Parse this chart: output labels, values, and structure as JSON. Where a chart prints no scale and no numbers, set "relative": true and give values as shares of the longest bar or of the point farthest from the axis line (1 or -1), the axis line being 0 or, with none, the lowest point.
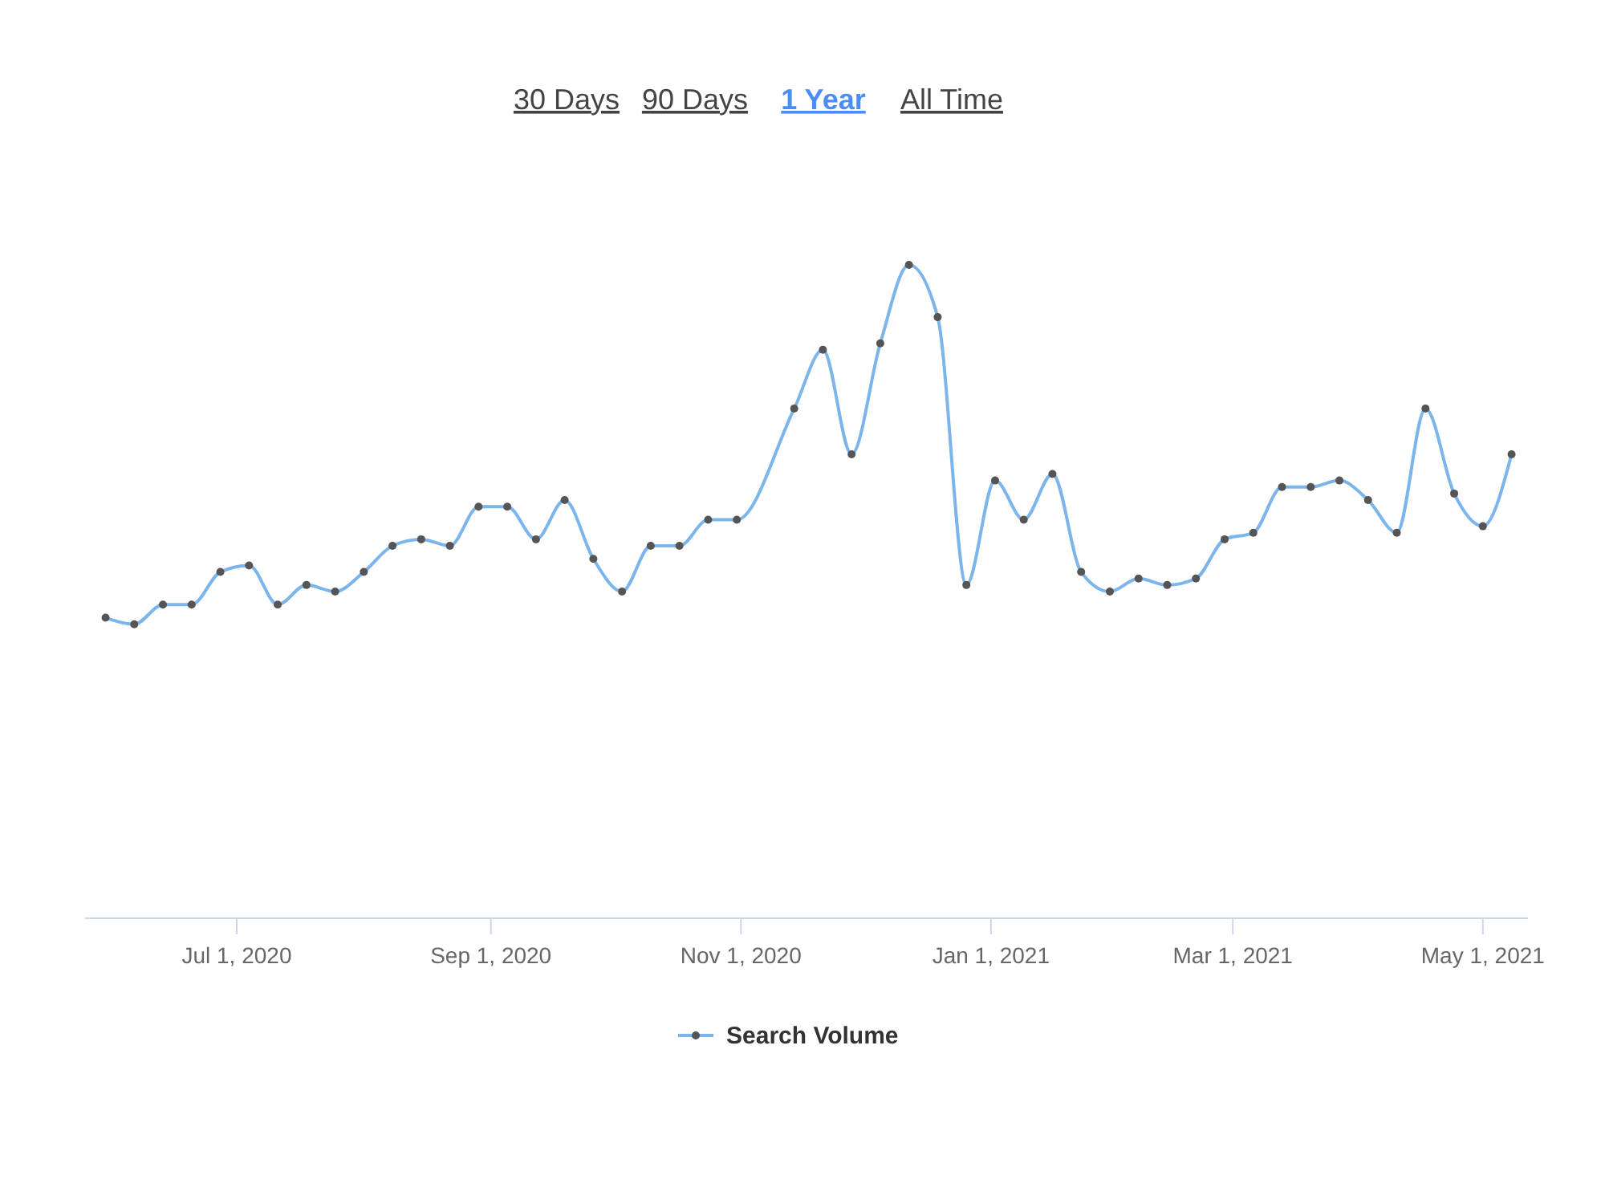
{
  "chart_data": {
    "type": "line",
    "relative": true,
    "annotations": [
      "30 Days",
      "90 Days",
      "1 Year",
      "All Time"
    ],
    "x": [
      "2020-05-30",
      "2020-06-06",
      "2020-06-13",
      "2020-06-20",
      "2020-06-27",
      "2020-07-04",
      "2020-07-11",
      "2020-07-18",
      "2020-07-25",
      "2020-08-01",
      "2020-08-08",
      "2020-08-15",
      "2020-08-22",
      "2020-08-29",
      "2020-09-05",
      "2020-09-12",
      "2020-09-19",
      "2020-09-26",
      "2020-10-03",
      "2020-10-10",
      "2020-10-17",
      "2020-10-24",
      "2020-10-31",
      "2020-11-14",
      "2020-11-21",
      "2020-11-28",
      "2020-12-05",
      "2020-12-12",
      "2020-12-19",
      "2020-12-26",
      "2021-01-02",
      "2021-01-09",
      "2021-01-16",
      "2021-01-23",
      "2021-01-30",
      "2021-02-06",
      "2021-02-13",
      "2021-02-20",
      "2021-02-27",
      "2021-03-06",
      "2021-03-13",
      "2021-03-20",
      "2021-03-27",
      "2021-04-03",
      "2021-04-10",
      "2021-04-17",
      "2021-04-24",
      "2021-05-01",
      "2021-05-08"
    ],
    "xlim": [
      "2020-05-25",
      "2021-05-12"
    ],
    "xticks": [
      {
        "value": "2020-07-01",
        "label": "Jul 1, 2020"
      },
      {
        "value": "2020-09-01",
        "label": "Sep 1, 2020"
      },
      {
        "value": "2020-11-01",
        "label": "Nov 1, 2020"
      },
      {
        "value": "2021-01-01",
        "label": "Jan 1, 2021"
      },
      {
        "value": "2021-03-01",
        "label": "Mar 1, 2021"
      },
      {
        "value": "2021-05-01",
        "label": "May 1, 2021"
      }
    ],
    "series": [
      {
        "name": "Search Volume",
        "color": "#7cb5ec",
        "values": [
          0.46,
          0.45,
          0.48,
          0.48,
          0.53,
          0.54,
          0.48,
          0.51,
          0.5,
          0.53,
          0.57,
          0.58,
          0.57,
          0.63,
          0.63,
          0.58,
          0.64,
          0.55,
          0.5,
          0.57,
          0.57,
          0.61,
          0.61,
          0.78,
          0.87,
          0.71,
          0.88,
          1,
          0.92,
          0.51,
          0.67,
          0.61,
          0.68,
          0.53,
          0.5,
          0.52,
          0.51,
          0.52,
          0.58,
          0.59,
          0.66,
          0.66,
          0.67,
          0.64,
          0.59,
          0.78,
          0.65,
          0.6,
          0.71
        ]
      }
    ],
    "legend": "bottom",
    "marker": "circle"
  }
}
